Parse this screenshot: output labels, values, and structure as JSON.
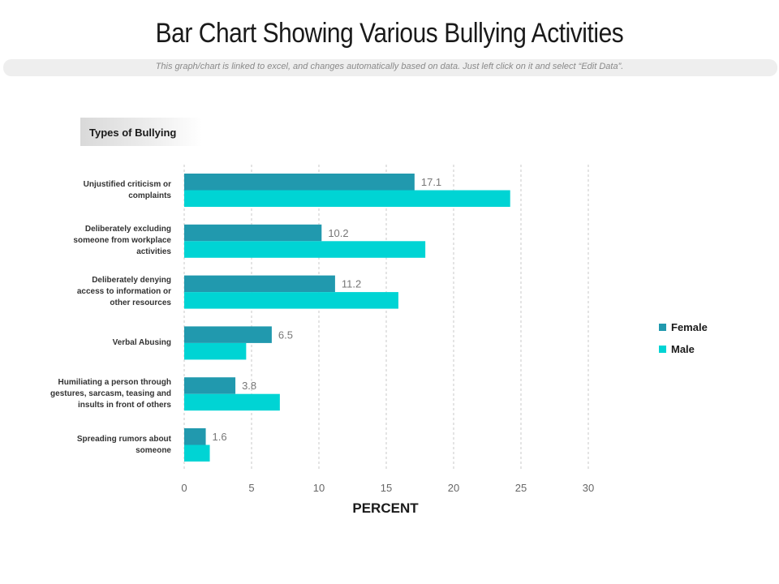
{
  "title": "Bar Chart Showing Various Bullying Activities",
  "subtitle": "This graph/chart is linked to excel, and changes automatically based on data. Just left click on it and select “Edit Data”.",
  "chart_data": {
    "type": "bar",
    "orientation": "horizontal",
    "category_axis_title": "Types of Bullying",
    "xlabel": "PERCENT",
    "xlim": [
      0,
      30
    ],
    "xticks": [
      0,
      5,
      10,
      15,
      20,
      25,
      30
    ],
    "grid": "vertical-dashed",
    "legend_position": "right",
    "categories": [
      "Unjustified criticism or complaints",
      "Deliberately excluding someone from workplace activities",
      "Deliberately denying access to information or other resources",
      "Verbal Abusing",
      "Humiliating a person through gestures, sarcasm, teasing and insults in front of others",
      "Spreading rumors about someone"
    ],
    "category_label_lines": [
      [
        "Unjustified criticism or",
        "complaints"
      ],
      [
        "Deliberately excluding",
        "someone from workplace",
        "activities"
      ],
      [
        "Deliberately denying",
        "access  to information or",
        "other resources"
      ],
      [
        "Verbal Abusing"
      ],
      [
        "Humiliating a person through",
        "gestures,  sarcasm,  teasing and",
        "insults in front of others"
      ],
      [
        "Spreading rumors about",
        "someone"
      ]
    ],
    "series": [
      {
        "name": "Female",
        "color": "#2199AE",
        "values": [
          17.1,
          10.2,
          11.2,
          6.5,
          3.8,
          1.6
        ],
        "show_labels": true
      },
      {
        "name": "Male",
        "color": "#00D4D4",
        "values": [
          24.2,
          17.9,
          15.9,
          4.6,
          7.1,
          1.9
        ],
        "show_labels": false
      }
    ]
  }
}
